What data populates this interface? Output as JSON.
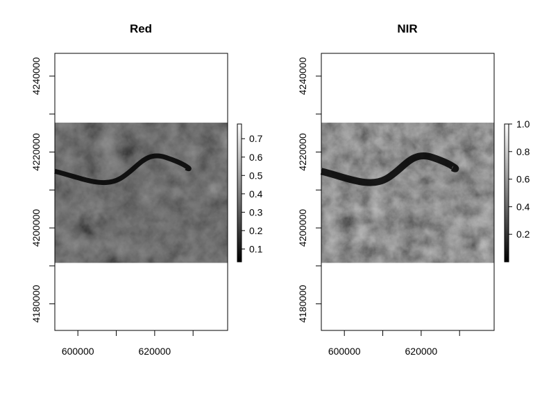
{
  "chart_data": [
    {
      "type": "heatmap",
      "title": "Red",
      "xlabel": "",
      "ylabel": "",
      "xlim": [
        594000,
        639000
      ],
      "ylim": [
        4173000,
        4246000
      ],
      "raster_extent": {
        "x": [
          594000,
          639000
        ],
        "y": [
          4190800,
          4227700
        ]
      },
      "x_ticks": [
        600000,
        610000,
        620000,
        630000
      ],
      "x_tick_labels": [
        "600000",
        "",
        "620000",
        ""
      ],
      "y_ticks": [
        4180000,
        4190000,
        4200000,
        4210000,
        4220000,
        4230000,
        4240000
      ],
      "y_tick_labels": [
        "4180000",
        "",
        "4200000",
        "",
        "4220000",
        "",
        "4240000"
      ],
      "colorbar": {
        "range": [
          0.03,
          0.78
        ],
        "ticks": [
          0.1,
          0.2,
          0.3,
          0.4,
          0.5,
          0.6,
          0.7
        ],
        "tick_labels": [
          "0.1",
          "0.2",
          "0.3",
          "0.4",
          "0.5",
          "0.6",
          "0.7"
        ],
        "colors": [
          "#000000",
          "#ffffff"
        ]
      },
      "brightness": 0.18
    },
    {
      "type": "heatmap",
      "title": "NIR",
      "xlabel": "",
      "ylabel": "",
      "xlim": [
        594000,
        639000
      ],
      "ylim": [
        4173000,
        4246000
      ],
      "raster_extent": {
        "x": [
          594000,
          639000
        ],
        "y": [
          4190800,
          4227700
        ]
      },
      "x_ticks": [
        600000,
        610000,
        620000,
        630000
      ],
      "x_tick_labels": [
        "600000",
        "",
        "620000",
        ""
      ],
      "y_ticks": [
        4180000,
        4190000,
        4200000,
        4210000,
        4220000,
        4230000,
        4240000
      ],
      "y_tick_labels": [
        "4180000",
        "",
        "4200000",
        "",
        "4220000",
        "",
        "4240000"
      ],
      "colorbar": {
        "range": [
          0.0,
          1.0
        ],
        "ticks": [
          0.2,
          0.4,
          0.6,
          0.8,
          1.0
        ],
        "tick_labels": [
          "0.2",
          "0.4",
          "0.6",
          "0.8",
          "1.0"
        ],
        "colors": [
          "#000000",
          "#ffffff"
        ]
      },
      "brightness": 0.32
    }
  ]
}
